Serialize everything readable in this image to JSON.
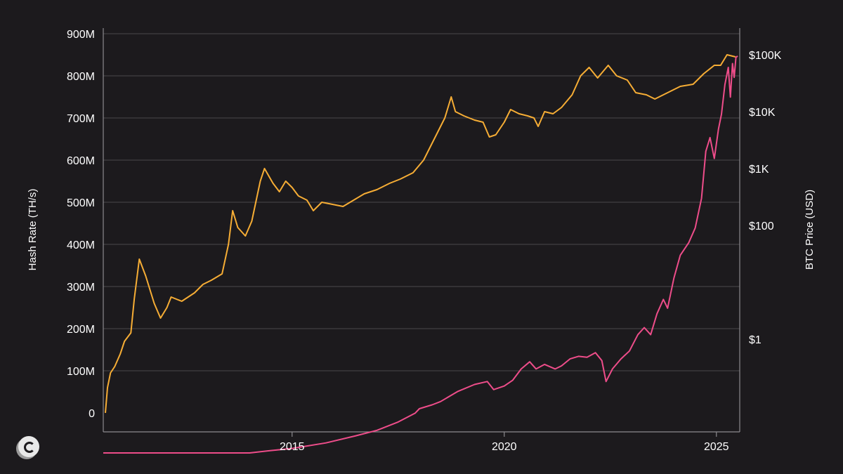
{
  "chart_data": {
    "type": "line",
    "title": "",
    "xlabel": "",
    "ylabel": "Hash Rate (TH/s)",
    "y2label": "BTC Price (USD)",
    "x_ticks": [
      "2015",
      "2020",
      "2025"
    ],
    "x_range": [
      2010.55,
      2025.55
    ],
    "ylim": [
      0,
      920000000
    ],
    "y_ticks": [
      {
        "value": 0,
        "label": "0"
      },
      {
        "value": 100000000,
        "label": "100M"
      },
      {
        "value": 200000000,
        "label": "200M"
      },
      {
        "value": 300000000,
        "label": "300M"
      },
      {
        "value": 400000000,
        "label": "400M"
      },
      {
        "value": 500000000,
        "label": "500M"
      },
      {
        "value": 600000000,
        "label": "600M"
      },
      {
        "value": 700000000,
        "label": "700M"
      },
      {
        "value": 800000000,
        "label": "800M"
      },
      {
        "value": 900000000,
        "label": "900M"
      }
    ],
    "y2_scale": "log",
    "y2_ticks": [
      {
        "value": 1,
        "label": "$1"
      },
      {
        "value": 100,
        "label": "$100"
      },
      {
        "value": 1000,
        "label": "$1K"
      },
      {
        "value": 10000,
        "label": "$10K"
      },
      {
        "value": 100000,
        "label": "$100K"
      }
    ],
    "grid": "horizontal",
    "legend": "none",
    "series": [
      {
        "axis": "left",
        "color": "#f6ad35",
        "points": [
          [
            2010.6,
            0
          ],
          [
            2010.65,
            60000000
          ],
          [
            2010.72,
            95000000
          ],
          [
            2010.82,
            110000000
          ],
          [
            2010.95,
            140000000
          ],
          [
            2011.05,
            170000000
          ],
          [
            2011.2,
            190000000
          ],
          [
            2011.28,
            270000000
          ],
          [
            2011.4,
            365000000
          ],
          [
            2011.55,
            325000000
          ],
          [
            2011.75,
            260000000
          ],
          [
            2011.9,
            225000000
          ],
          [
            2012.05,
            250000000
          ],
          [
            2012.15,
            275000000
          ],
          [
            2012.4,
            265000000
          ],
          [
            2012.7,
            285000000
          ],
          [
            2012.9,
            305000000
          ],
          [
            2013.1,
            315000000
          ],
          [
            2013.35,
            330000000
          ],
          [
            2013.5,
            400000000
          ],
          [
            2013.6,
            480000000
          ],
          [
            2013.72,
            440000000
          ],
          [
            2013.9,
            420000000
          ],
          [
            2014.05,
            455000000
          ],
          [
            2014.25,
            550000000
          ],
          [
            2014.35,
            580000000
          ],
          [
            2014.55,
            545000000
          ],
          [
            2014.7,
            525000000
          ],
          [
            2014.85,
            550000000
          ],
          [
            2015.0,
            535000000
          ],
          [
            2015.15,
            515000000
          ],
          [
            2015.35,
            505000000
          ],
          [
            2015.5,
            480000000
          ],
          [
            2015.7,
            500000000
          ],
          [
            2015.95,
            495000000
          ],
          [
            2016.2,
            490000000
          ],
          [
            2016.45,
            505000000
          ],
          [
            2016.7,
            520000000
          ],
          [
            2017.0,
            530000000
          ],
          [
            2017.3,
            545000000
          ],
          [
            2017.55,
            555000000
          ],
          [
            2017.85,
            570000000
          ],
          [
            2018.1,
            600000000
          ],
          [
            2018.35,
            650000000
          ],
          [
            2018.6,
            700000000
          ],
          [
            2018.75,
            750000000
          ],
          [
            2018.85,
            715000000
          ],
          [
            2019.05,
            705000000
          ],
          [
            2019.3,
            695000000
          ],
          [
            2019.5,
            690000000
          ],
          [
            2019.65,
            655000000
          ],
          [
            2019.8,
            660000000
          ],
          [
            2020.0,
            690000000
          ],
          [
            2020.15,
            720000000
          ],
          [
            2020.35,
            710000000
          ],
          [
            2020.55,
            705000000
          ],
          [
            2020.7,
            700000000
          ],
          [
            2020.8,
            680000000
          ],
          [
            2020.95,
            715000000
          ],
          [
            2021.15,
            710000000
          ],
          [
            2021.35,
            725000000
          ],
          [
            2021.6,
            755000000
          ],
          [
            2021.8,
            800000000
          ],
          [
            2022.0,
            820000000
          ],
          [
            2022.2,
            795000000
          ],
          [
            2022.45,
            825000000
          ],
          [
            2022.65,
            800000000
          ],
          [
            2022.9,
            790000000
          ],
          [
            2023.1,
            760000000
          ],
          [
            2023.35,
            755000000
          ],
          [
            2023.55,
            745000000
          ],
          [
            2023.85,
            760000000
          ],
          [
            2024.15,
            775000000
          ],
          [
            2024.45,
            780000000
          ],
          [
            2024.7,
            805000000
          ],
          [
            2024.95,
            825000000
          ],
          [
            2025.1,
            825000000
          ],
          [
            2025.25,
            850000000
          ],
          [
            2025.45,
            845000000
          ]
        ]
      },
      {
        "axis": "right",
        "color": "#ee4d8a",
        "points": [
          [
            2010.55,
            0.01
          ],
          [
            2012.0,
            0.01
          ],
          [
            2013.0,
            0.01
          ],
          [
            2014.0,
            0.01
          ],
          [
            2014.5,
            0.011
          ],
          [
            2015.0,
            0.012
          ],
          [
            2015.8,
            0.015
          ],
          [
            2016.5,
            0.02
          ],
          [
            2017.0,
            0.025
          ],
          [
            2017.5,
            0.035
          ],
          [
            2017.9,
            0.05
          ],
          [
            2018.0,
            0.06
          ],
          [
            2018.3,
            0.07
          ],
          [
            2018.5,
            0.08
          ],
          [
            2018.9,
            0.12
          ],
          [
            2019.3,
            0.16
          ],
          [
            2019.6,
            0.18
          ],
          [
            2019.75,
            0.13
          ],
          [
            2020.0,
            0.15
          ],
          [
            2020.2,
            0.19
          ],
          [
            2020.4,
            0.3
          ],
          [
            2020.6,
            0.4
          ],
          [
            2020.75,
            0.3
          ],
          [
            2020.95,
            0.36
          ],
          [
            2021.2,
            0.3
          ],
          [
            2021.35,
            0.34
          ],
          [
            2021.55,
            0.45
          ],
          [
            2021.75,
            0.5
          ],
          [
            2021.95,
            0.48
          ],
          [
            2022.15,
            0.58
          ],
          [
            2022.3,
            0.42
          ],
          [
            2022.4,
            0.18
          ],
          [
            2022.55,
            0.3
          ],
          [
            2022.75,
            0.45
          ],
          [
            2022.95,
            0.62
          ],
          [
            2023.15,
            1.2
          ],
          [
            2023.3,
            1.6
          ],
          [
            2023.45,
            1.2
          ],
          [
            2023.6,
            2.8
          ],
          [
            2023.75,
            5
          ],
          [
            2023.85,
            3.5
          ],
          [
            2024.0,
            12
          ],
          [
            2024.15,
            30
          ],
          [
            2024.35,
            50
          ],
          [
            2024.5,
            90
          ],
          [
            2024.65,
            300
          ],
          [
            2024.75,
            2000
          ],
          [
            2024.85,
            3500
          ],
          [
            2024.95,
            1500
          ],
          [
            2025.05,
            5000
          ],
          [
            2025.12,
            9000
          ],
          [
            2025.2,
            30000
          ],
          [
            2025.28,
            60000
          ],
          [
            2025.33,
            18000
          ],
          [
            2025.38,
            70000
          ],
          [
            2025.42,
            40000
          ],
          [
            2025.46,
            90000
          ],
          [
            2025.5,
            95000
          ]
        ]
      }
    ]
  }
}
